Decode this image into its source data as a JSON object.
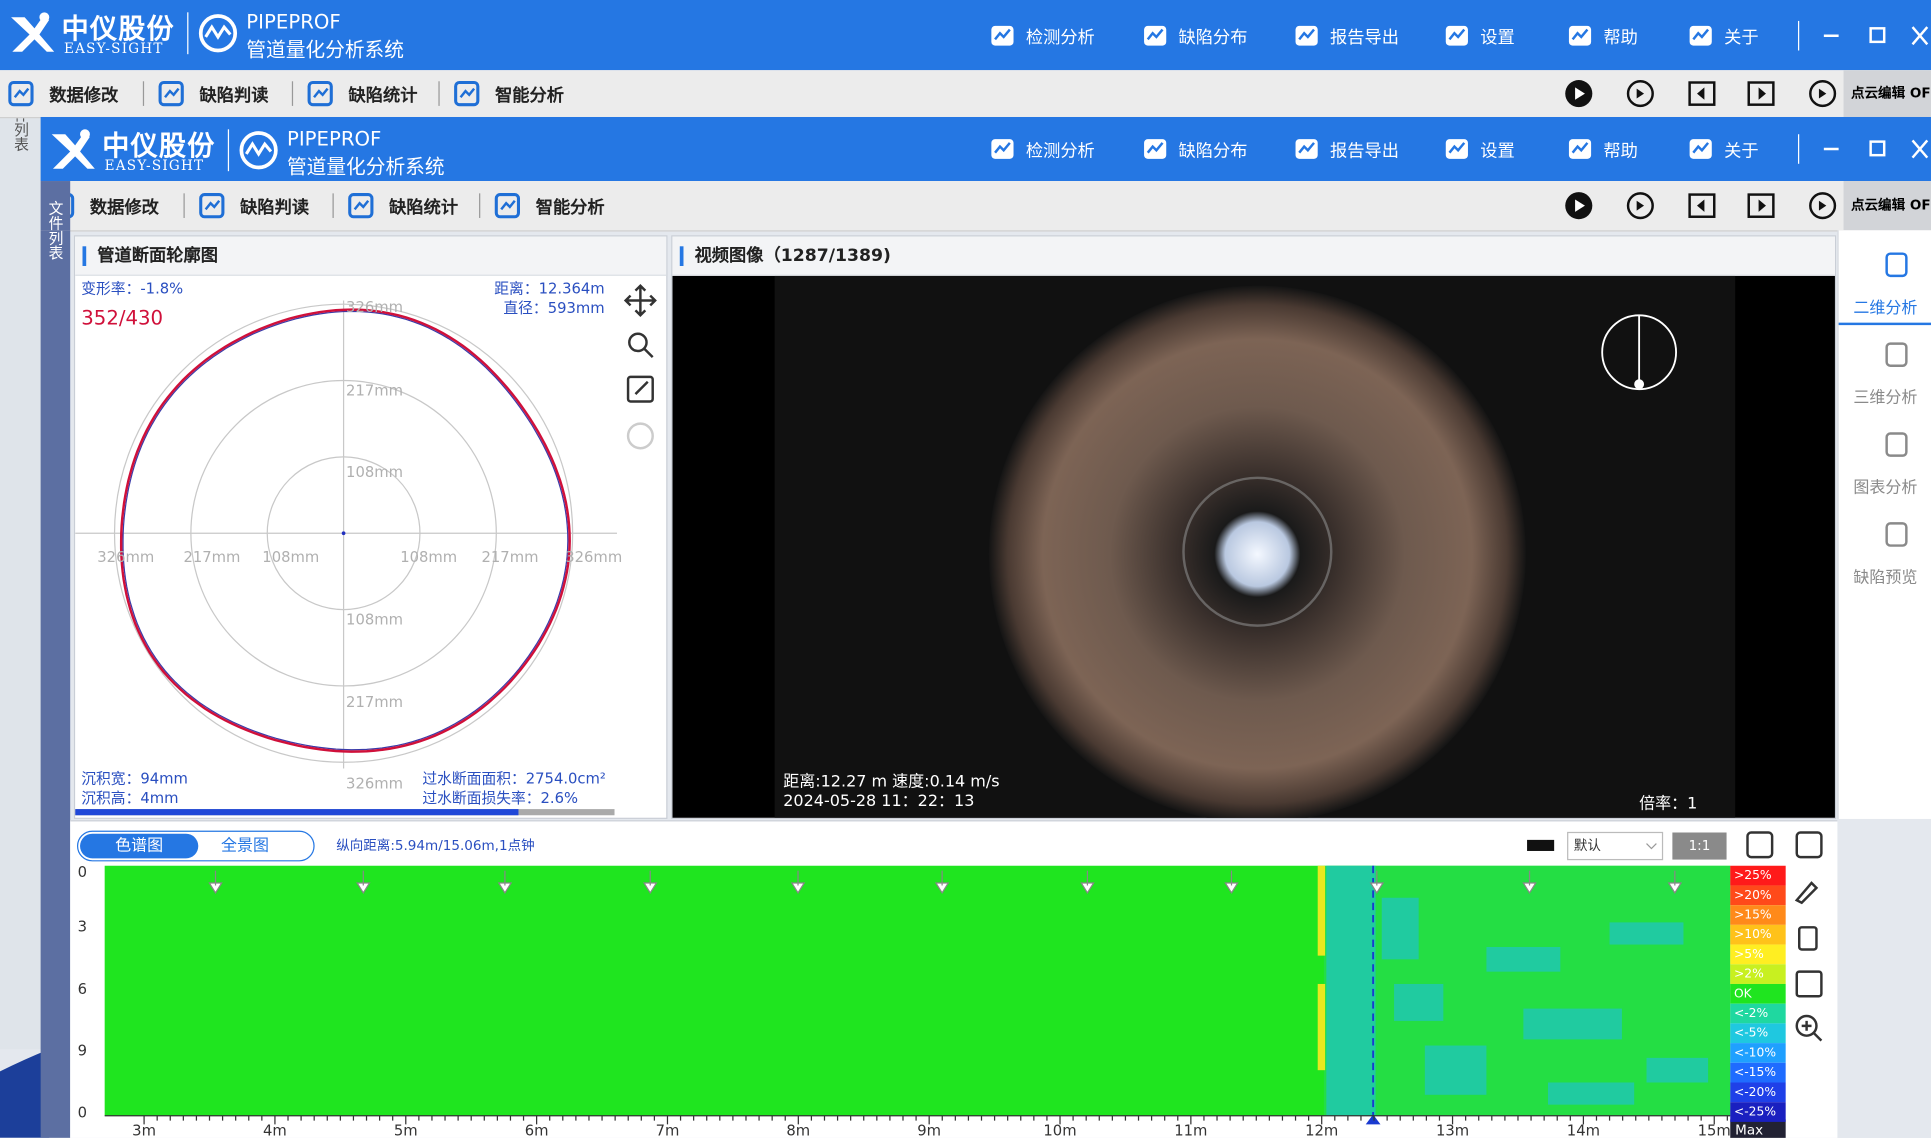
{
  "window": {
    "brand": "中仪股份",
    "brand_en": "EASY-SIGHT",
    "product": "PIPEPROF",
    "product_cn": "管道量化分析系统",
    "nav": [
      "检测分析",
      "缺陷分布",
      "报告导出",
      "设置",
      "帮助",
      "关于"
    ],
    "toolbar": [
      "数据修改",
      "缺陷判读",
      "缺陷统计",
      "智能分析"
    ],
    "toolbar_right": "点云编辑 OF",
    "file_list": "文件列表"
  },
  "section": {
    "title": "管道断面轮廓图",
    "deform": "变形率：-1.8%",
    "frame": "352/430",
    "distance": "距离：12.364m",
    "diameter": "直径：593mm",
    "ring_labels": [
      "326mm",
      "217mm",
      "108mm"
    ],
    "stats": [
      "沉积宽：94mm",
      "沉积高：4mm",
      "过水断面面积：2754.0cm²",
      "过水断面损失率：2.6%"
    ]
  },
  "video": {
    "title": "视频图像（1287/1389)",
    "overlay": [
      "距离:12.27 m 速度:0.14 m/s",
      "2024-05-28 11：22：13"
    ],
    "zoom": "倍率：1"
  },
  "side_tabs": [
    "二维分析",
    "三维分析",
    "图表分析",
    "缺陷预览"
  ],
  "strip": {
    "tabs": [
      "色谱图",
      "全景图"
    ],
    "info": "纵向距离:5.94m/15.06m,1点钟",
    "select": "默认",
    "ratio": "1:1",
    "y_labels": [
      "0",
      "3",
      "6",
      "9",
      "0"
    ],
    "x_labels": [
      "3m",
      "4m",
      "5m",
      "6m",
      "7m",
      "8m",
      "9m",
      "10m",
      "11m",
      "12m",
      "13m",
      "14m",
      "15m"
    ],
    "x_end": "Max",
    "legend": [
      ">25%",
      ">20%",
      ">15%",
      ">10%",
      ">5%",
      ">2%",
      "OK",
      "<-2%",
      "<-5%",
      "<-10%",
      "<-15%",
      "<-20%",
      "<-25%"
    ]
  }
}
